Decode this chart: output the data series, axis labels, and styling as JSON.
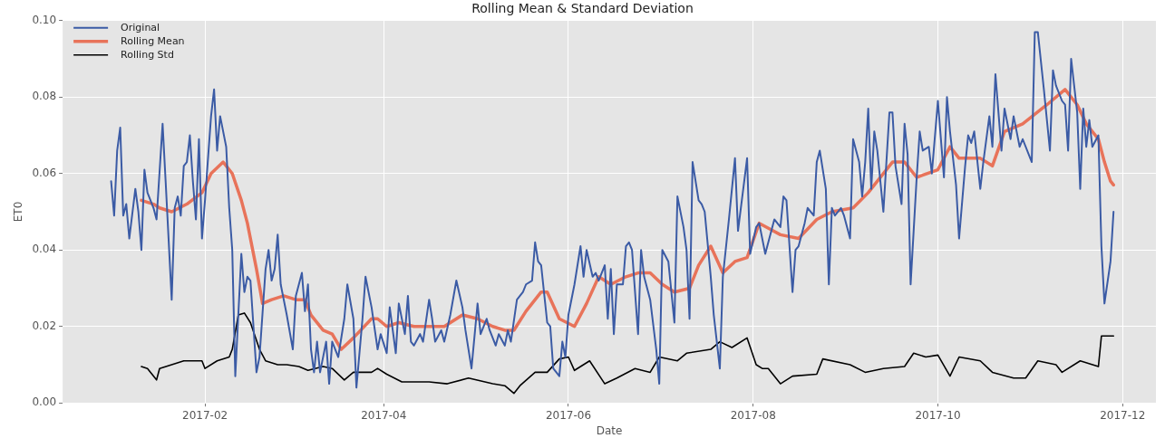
{
  "chart_data": {
    "type": "line",
    "title": "Rolling Mean & Standard Deviation",
    "xlabel": "Date",
    "ylabel": "ET0",
    "xlim": [
      "2016-12-16",
      "2017-12-12"
    ],
    "xticks": [
      "2017-02",
      "2017-04",
      "2017-06",
      "2017-08",
      "2017-10",
      "2017-12"
    ],
    "ylim": [
      0,
      0.1
    ],
    "yticks": [
      {
        "value": 0,
        "label": "0.00"
      },
      {
        "value": 0.02,
        "label": "0.02"
      },
      {
        "value": 0.04,
        "label": "0.04"
      },
      {
        "value": 0.06,
        "label": "0.06"
      },
      {
        "value": 0.08,
        "label": "0.08"
      },
      {
        "value": 0.1,
        "label": "0.10"
      }
    ],
    "grid": true,
    "legend": "top left",
    "series": [
      {
        "name": "Original",
        "color": "#3b5ba5",
        "x": [
          "2017-01-01",
          "2017-01-02",
          "2017-01-03",
          "2017-01-04",
          "2017-01-05",
          "2017-01-06",
          "2017-01-07",
          "2017-01-09",
          "2017-01-10",
          "2017-01-11",
          "2017-01-12",
          "2017-01-13",
          "2017-01-15",
          "2017-01-16",
          "2017-01-18",
          "2017-01-19",
          "2017-01-21",
          "2017-01-22",
          "2017-01-23",
          "2017-01-24",
          "2017-01-25",
          "2017-01-26",
          "2017-01-27",
          "2017-01-28",
          "2017-01-29",
          "2017-01-30",
          "2017-01-31",
          "2017-02-01",
          "2017-02-03",
          "2017-02-04",
          "2017-02-05",
          "2017-02-06",
          "2017-02-08",
          "2017-02-09",
          "2017-02-10",
          "2017-02-11",
          "2017-02-13",
          "2017-02-14",
          "2017-02-15",
          "2017-02-16",
          "2017-02-18",
          "2017-02-19",
          "2017-02-21",
          "2017-02-22",
          "2017-02-23",
          "2017-02-24",
          "2017-02-25",
          "2017-02-26",
          "2017-02-28",
          "2017-03-02",
          "2017-03-03",
          "2017-03-05",
          "2017-03-06",
          "2017-03-07",
          "2017-03-08",
          "2017-03-09",
          "2017-03-10",
          "2017-03-11",
          "2017-03-13",
          "2017-03-14",
          "2017-03-15",
          "2017-03-17",
          "2017-03-19",
          "2017-03-20",
          "2017-03-22",
          "2017-03-23",
          "2017-03-25",
          "2017-03-26",
          "2017-03-28",
          "2017-03-30",
          "2017-03-31",
          "2017-04-02",
          "2017-04-03",
          "2017-04-05",
          "2017-04-06",
          "2017-04-08",
          "2017-04-09",
          "2017-04-10",
          "2017-04-11",
          "2017-04-13",
          "2017-04-14",
          "2017-04-16",
          "2017-04-17",
          "2017-04-18",
          "2017-04-20",
          "2017-04-21",
          "2017-04-23",
          "2017-04-25",
          "2017-04-27",
          "2017-04-28",
          "2017-04-30",
          "2017-05-02",
          "2017-05-03",
          "2017-05-05",
          "2017-05-06",
          "2017-05-08",
          "2017-05-09",
          "2017-05-11",
          "2017-05-12",
          "2017-05-13",
          "2017-05-15",
          "2017-05-17",
          "2017-05-18",
          "2017-05-20",
          "2017-05-21",
          "2017-05-22",
          "2017-05-23",
          "2017-05-25",
          "2017-05-26",
          "2017-05-27",
          "2017-05-29",
          "2017-05-30",
          "2017-05-31",
          "2017-06-01",
          "2017-06-03",
          "2017-06-05",
          "2017-06-06",
          "2017-06-07",
          "2017-06-09",
          "2017-06-10",
          "2017-06-11",
          "2017-06-13",
          "2017-06-14",
          "2017-06-15",
          "2017-06-16",
          "2017-06-17",
          "2017-06-19",
          "2017-06-20",
          "2017-06-21",
          "2017-06-22",
          "2017-06-24",
          "2017-06-25",
          "2017-06-26",
          "2017-06-28",
          "2017-06-30",
          "2017-07-01",
          "2017-07-02",
          "2017-07-04",
          "2017-07-06",
          "2017-07-07",
          "2017-07-09",
          "2017-07-10",
          "2017-07-11",
          "2017-07-12",
          "2017-07-14",
          "2017-07-15",
          "2017-07-16",
          "2017-07-18",
          "2017-07-19",
          "2017-07-21",
          "2017-07-22",
          "2017-07-24",
          "2017-07-26",
          "2017-07-27",
          "2017-07-30",
          "2017-07-31",
          "2017-08-02",
          "2017-08-03",
          "2017-08-05",
          "2017-08-08",
          "2017-08-10",
          "2017-08-11",
          "2017-08-12",
          "2017-08-14",
          "2017-08-15",
          "2017-08-16",
          "2017-08-18",
          "2017-08-19",
          "2017-08-21",
          "2017-08-22",
          "2017-08-23",
          "2017-08-25",
          "2017-08-26",
          "2017-08-27",
          "2017-08-28",
          "2017-08-30",
          "2017-08-31",
          "2017-09-02",
          "2017-09-03",
          "2017-09-05",
          "2017-09-06",
          "2017-09-07",
          "2017-09-08",
          "2017-09-09",
          "2017-09-10",
          "2017-09-11",
          "2017-09-13",
          "2017-09-14",
          "2017-09-15",
          "2017-09-16",
          "2017-09-17",
          "2017-09-19",
          "2017-09-20",
          "2017-09-21",
          "2017-09-22",
          "2017-09-24",
          "2017-09-25",
          "2017-09-26",
          "2017-09-28",
          "2017-09-29",
          "2017-10-01",
          "2017-10-03",
          "2017-10-04",
          "2017-10-05",
          "2017-10-07",
          "2017-10-08",
          "2017-10-10",
          "2017-10-11",
          "2017-10-12",
          "2017-10-13",
          "2017-10-15",
          "2017-10-16",
          "2017-10-18",
          "2017-10-19",
          "2017-10-20",
          "2017-10-22",
          "2017-10-23",
          "2017-10-25",
          "2017-10-26",
          "2017-10-28",
          "2017-10-29",
          "2017-11-01",
          "2017-11-02",
          "2017-11-03",
          "2017-11-05",
          "2017-11-07",
          "2017-11-08",
          "2017-11-09",
          "2017-11-11",
          "2017-11-12",
          "2017-11-13",
          "2017-11-14",
          "2017-11-16",
          "2017-11-17",
          "2017-11-18",
          "2017-11-19",
          "2017-11-20",
          "2017-11-21",
          "2017-11-23",
          "2017-11-24",
          "2017-11-25",
          "2017-11-27",
          "2017-11-28"
        ],
        "values": [
          0.058,
          0.049,
          0.066,
          0.072,
          0.049,
          0.052,
          0.043,
          0.056,
          0.05,
          0.04,
          0.061,
          0.055,
          0.051,
          0.048,
          0.073,
          0.058,
          0.027,
          0.051,
          0.054,
          0.049,
          0.062,
          0.063,
          0.07,
          0.058,
          0.048,
          0.069,
          0.043,
          0.053,
          0.075,
          0.082,
          0.066,
          0.075,
          0.067,
          0.051,
          0.04,
          0.007,
          0.039,
          0.029,
          0.033,
          0.032,
          0.008,
          0.012,
          0.035,
          0.04,
          0.032,
          0.035,
          0.044,
          0.031,
          0.023,
          0.014,
          0.028,
          0.034,
          0.024,
          0.031,
          0.014,
          0.008,
          0.016,
          0.008,
          0.016,
          0.005,
          0.016,
          0.012,
          0.022,
          0.031,
          0.022,
          0.004,
          0.022,
          0.033,
          0.025,
          0.014,
          0.018,
          0.013,
          0.025,
          0.013,
          0.026,
          0.018,
          0.028,
          0.016,
          0.015,
          0.018,
          0.016,
          0.027,
          0.022,
          0.016,
          0.019,
          0.016,
          0.023,
          0.032,
          0.025,
          0.019,
          0.009,
          0.026,
          0.018,
          0.022,
          0.019,
          0.015,
          0.018,
          0.015,
          0.019,
          0.016,
          0.027,
          0.029,
          0.031,
          0.032,
          0.042,
          0.037,
          0.036,
          0.021,
          0.02,
          0.009,
          0.007,
          0.016,
          0.012,
          0.023,
          0.031,
          0.041,
          0.033,
          0.04,
          0.033,
          0.034,
          0.032,
          0.036,
          0.022,
          0.035,
          0.018,
          0.031,
          0.031,
          0.041,
          0.042,
          0.04,
          0.018,
          0.04,
          0.033,
          0.027,
          0.014,
          0.005,
          0.04,
          0.037,
          0.021,
          0.054,
          0.046,
          0.04,
          0.022,
          0.063,
          0.053,
          0.052,
          0.05,
          0.033,
          0.023,
          0.009,
          0.033,
          0.048,
          0.064,
          0.045,
          0.064,
          0.039,
          0.046,
          0.047,
          0.039,
          0.048,
          0.046,
          0.054,
          0.053,
          0.029,
          0.04,
          0.041,
          0.047,
          0.051,
          0.049,
          0.063,
          0.066,
          0.056,
          0.031,
          0.051,
          0.049,
          0.051,
          0.049,
          0.043,
          0.069,
          0.063,
          0.054,
          0.063,
          0.077,
          0.056,
          0.071,
          0.066,
          0.05,
          0.063,
          0.076,
          0.076,
          0.062,
          0.052,
          0.073,
          0.065,
          0.031,
          0.059,
          0.071,
          0.066,
          0.067,
          0.06,
          0.079,
          0.059,
          0.08,
          0.071,
          0.057,
          0.043,
          0.062,
          0.07,
          0.068,
          0.071,
          0.056,
          0.063,
          0.075,
          0.067,
          0.086,
          0.066,
          0.077,
          0.069,
          0.075,
          0.067,
          0.069,
          0.063,
          0.097,
          0.097,
          0.082,
          0.066,
          0.087,
          0.083,
          0.079,
          0.078,
          0.066,
          0.09,
          0.076,
          0.056,
          0.077,
          0.067,
          0.074,
          0.067,
          0.07,
          0.041,
          0.026,
          0.037,
          0.05
        ]
      },
      {
        "name": "Rolling Mean",
        "color": "#e8735a",
        "x": [
          "2017-01-11",
          "2017-01-15",
          "2017-01-17",
          "2017-01-21",
          "2017-01-26",
          "2017-01-31",
          "2017-02-03",
          "2017-02-07",
          "2017-02-10",
          "2017-02-13",
          "2017-02-15",
          "2017-02-18",
          "2017-02-20",
          "2017-02-23",
          "2017-02-27",
          "2017-03-03",
          "2017-03-06",
          "2017-03-08",
          "2017-03-12",
          "2017-03-15",
          "2017-03-18",
          "2017-03-22",
          "2017-03-28",
          "2017-03-30",
          "2017-04-02",
          "2017-04-06",
          "2017-04-11",
          "2017-04-16",
          "2017-04-21",
          "2017-04-27",
          "2017-05-02",
          "2017-05-07",
          "2017-05-11",
          "2017-05-14",
          "2017-05-18",
          "2017-05-23",
          "2017-05-25",
          "2017-05-29",
          "2017-06-03",
          "2017-06-07",
          "2017-06-11",
          "2017-06-15",
          "2017-06-20",
          "2017-06-24",
          "2017-06-28",
          "2017-07-02",
          "2017-07-06",
          "2017-07-11",
          "2017-07-14",
          "2017-07-18",
          "2017-07-22",
          "2017-07-26",
          "2017-07-30",
          "2017-08-03",
          "2017-08-10",
          "2017-08-16",
          "2017-08-22",
          "2017-08-27",
          "2017-09-03",
          "2017-09-08",
          "2017-09-16",
          "2017-09-20",
          "2017-09-24",
          "2017-10-01",
          "2017-10-05",
          "2017-10-08",
          "2017-10-15",
          "2017-10-19",
          "2017-10-23",
          "2017-10-29",
          "2017-11-06",
          "2017-11-12",
          "2017-11-16",
          "2017-11-19",
          "2017-11-23",
          "2017-11-25",
          "2017-11-27",
          "2017-11-28"
        ],
        "values": [
          0.053,
          0.052,
          0.051,
          0.05,
          0.052,
          0.055,
          0.06,
          0.063,
          0.06,
          0.053,
          0.047,
          0.035,
          0.026,
          0.027,
          0.028,
          0.027,
          0.027,
          0.023,
          0.019,
          0.018,
          0.014,
          0.017,
          0.022,
          0.022,
          0.02,
          0.021,
          0.02,
          0.02,
          0.02,
          0.023,
          0.022,
          0.02,
          0.019,
          0.019,
          0.024,
          0.029,
          0.029,
          0.022,
          0.02,
          0.026,
          0.033,
          0.031,
          0.033,
          0.034,
          0.034,
          0.031,
          0.029,
          0.03,
          0.036,
          0.041,
          0.034,
          0.037,
          0.038,
          0.047,
          0.044,
          0.043,
          0.048,
          0.05,
          0.051,
          0.055,
          0.063,
          0.063,
          0.059,
          0.061,
          0.067,
          0.064,
          0.064,
          0.062,
          0.071,
          0.073,
          0.078,
          0.082,
          0.078,
          0.073,
          0.069,
          0.063,
          0.058,
          0.057
        ]
      },
      {
        "name": "Rolling Std",
        "color": "#000000",
        "x": [
          "2017-01-11",
          "2017-01-13",
          "2017-01-16",
          "2017-01-17",
          "2017-01-21",
          "2017-01-25",
          "2017-01-28",
          "2017-01-30",
          "2017-01-31",
          "2017-02-01",
          "2017-02-05",
          "2017-02-09",
          "2017-02-10",
          "2017-02-12",
          "2017-02-14",
          "2017-02-16",
          "2017-02-19",
          "2017-02-21",
          "2017-02-25",
          "2017-02-28",
          "2017-03-04",
          "2017-03-07",
          "2017-03-12",
          "2017-03-15",
          "2017-03-19",
          "2017-03-22",
          "2017-03-28",
          "2017-03-30",
          "2017-04-02",
          "2017-04-07",
          "2017-04-16",
          "2017-04-22",
          "2017-04-29",
          "2017-05-07",
          "2017-05-11",
          "2017-05-14",
          "2017-05-16",
          "2017-05-21",
          "2017-05-25",
          "2017-05-29",
          "2017-06-01",
          "2017-06-03",
          "2017-06-08",
          "2017-06-13",
          "2017-06-17",
          "2017-06-23",
          "2017-06-28",
          "2017-07-01",
          "2017-07-07",
          "2017-07-10",
          "2017-07-18",
          "2017-07-21",
          "2017-07-25",
          "2017-07-30",
          "2017-08-02",
          "2017-08-04",
          "2017-08-06",
          "2017-08-10",
          "2017-08-14",
          "2017-08-22",
          "2017-08-24",
          "2017-09-02",
          "2017-09-07",
          "2017-09-13",
          "2017-09-20",
          "2017-09-23",
          "2017-09-27",
          "2017-10-01",
          "2017-10-05",
          "2017-10-08",
          "2017-10-15",
          "2017-10-19",
          "2017-10-26",
          "2017-10-30",
          "2017-11-03",
          "2017-11-09",
          "2017-11-11",
          "2017-11-17",
          "2017-11-23",
          "2017-11-24",
          "2017-11-28"
        ],
        "values": [
          0.0095,
          0.009,
          0.006,
          0.009,
          0.01,
          0.011,
          0.011,
          0.011,
          0.011,
          0.009,
          0.011,
          0.012,
          0.014,
          0.023,
          0.0235,
          0.021,
          0.014,
          0.011,
          0.01,
          0.01,
          0.0095,
          0.0085,
          0.0095,
          0.009,
          0.006,
          0.008,
          0.008,
          0.009,
          0.0075,
          0.0055,
          0.0055,
          0.005,
          0.0065,
          0.005,
          0.0045,
          0.0025,
          0.0045,
          0.008,
          0.008,
          0.0115,
          0.012,
          0.0085,
          0.011,
          0.005,
          0.0065,
          0.009,
          0.008,
          0.012,
          0.011,
          0.013,
          0.014,
          0.016,
          0.0145,
          0.017,
          0.01,
          0.009,
          0.009,
          0.005,
          0.007,
          0.0075,
          0.0115,
          0.01,
          0.008,
          0.009,
          0.0095,
          0.013,
          0.012,
          0.0125,
          0.007,
          0.012,
          0.011,
          0.008,
          0.0065,
          0.0065,
          0.011,
          0.01,
          0.008,
          0.011,
          0.0095,
          0.0175,
          0.0175
        ]
      }
    ]
  }
}
